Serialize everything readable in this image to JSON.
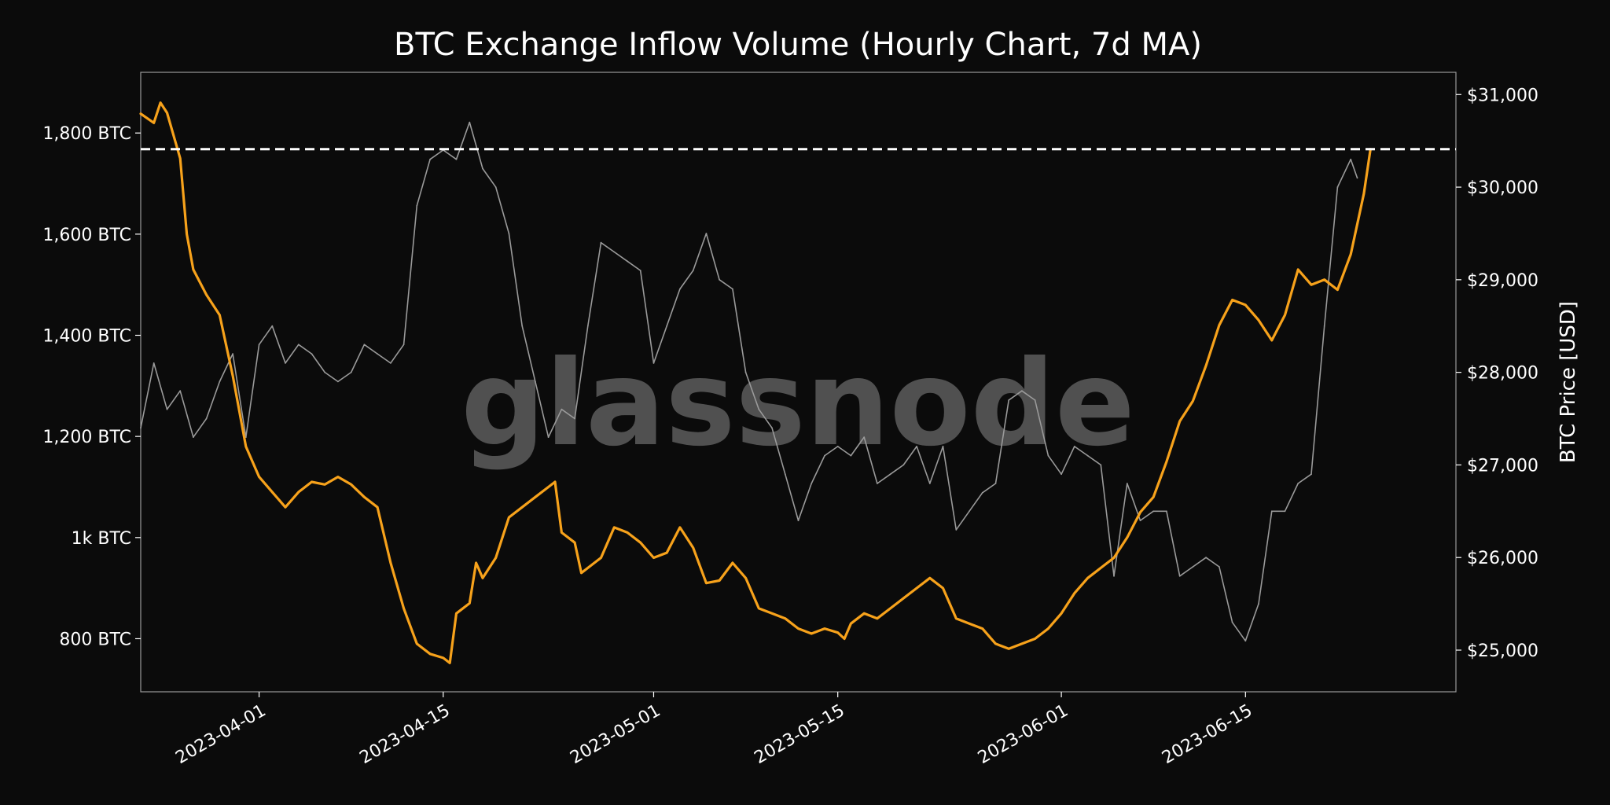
{
  "chart_data": {
    "type": "line",
    "title": "BTC Exchange Inflow Volume (Hourly Chart, 7d MA)",
    "watermark": "glassnode",
    "xlabel": "",
    "ylabel_left": "",
    "ylabel_right": "BTC Price [USD]",
    "x_ticks": [
      "2023-04-01",
      "2023-04-15",
      "2023-05-01",
      "2023-05-15",
      "2023-06-01",
      "2023-06-15"
    ],
    "y_left_ticks": [
      {
        "value": 800,
        "label": "800 BTC"
      },
      {
        "value": 1000,
        "label": "1k BTC"
      },
      {
        "value": 1200,
        "label": "1,200 BTC"
      },
      {
        "value": 1400,
        "label": "1,400 BTC"
      },
      {
        "value": 1600,
        "label": "1,600 BTC"
      },
      {
        "value": 1800,
        "label": "1,800 BTC"
      }
    ],
    "y_right_ticks": [
      {
        "value": 25000,
        "label": "$25,000"
      },
      {
        "value": 26000,
        "label": "$26,000"
      },
      {
        "value": 27000,
        "label": "$27,000"
      },
      {
        "value": 28000,
        "label": "$28,000"
      },
      {
        "value": 29000,
        "label": "$29,000"
      },
      {
        "value": 30000,
        "label": "$30,000"
      },
      {
        "value": 31000,
        "label": "$31,000"
      }
    ],
    "x_range": [
      "2023-03-23",
      "2023-07-01"
    ],
    "y_left_range": [
      695,
      1920
    ],
    "y_right_range": [
      24550,
      31240
    ],
    "reference_line": {
      "axis": "left",
      "value": 1768,
      "style": "dashed",
      "color": "#ffffff"
    },
    "grid": false,
    "colors": {
      "background": "#0b0b0b",
      "inflow": "#f7a21b",
      "price": "#9a9a9a"
    },
    "series": [
      {
        "key": "inflow_7d_ma",
        "axis": "left",
        "color": "#f7a21b",
        "points": [
          [
            "2023-03-23",
            1838
          ],
          [
            "2023-03-24",
            1820
          ],
          [
            "2023-03-24T12",
            1860
          ],
          [
            "2023-03-25",
            1840
          ],
          [
            "2023-03-26",
            1750
          ],
          [
            "2023-03-26T12",
            1600
          ],
          [
            "2023-03-27",
            1530
          ],
          [
            "2023-03-28",
            1480
          ],
          [
            "2023-03-29",
            1440
          ],
          [
            "2023-03-30",
            1320
          ],
          [
            "2023-03-31",
            1180
          ],
          [
            "2023-04-01",
            1120
          ],
          [
            "2023-04-02",
            1090
          ],
          [
            "2023-04-03",
            1060
          ],
          [
            "2023-04-04",
            1090
          ],
          [
            "2023-04-05",
            1110
          ],
          [
            "2023-04-06",
            1105
          ],
          [
            "2023-04-07",
            1120
          ],
          [
            "2023-04-08",
            1105
          ],
          [
            "2023-04-09",
            1080
          ],
          [
            "2023-04-10",
            1060
          ],
          [
            "2023-04-11",
            950
          ],
          [
            "2023-04-12",
            860
          ],
          [
            "2023-04-13",
            790
          ],
          [
            "2023-04-14",
            770
          ],
          [
            "2023-04-15",
            762
          ],
          [
            "2023-04-15T12",
            752
          ],
          [
            "2023-04-16",
            850
          ],
          [
            "2023-04-17",
            870
          ],
          [
            "2023-04-17T12",
            950
          ],
          [
            "2023-04-18",
            920
          ],
          [
            "2023-04-19",
            960
          ],
          [
            "2023-04-20",
            1040
          ],
          [
            "2023-04-21",
            1060
          ],
          [
            "2023-04-22",
            1080
          ],
          [
            "2023-04-23",
            1100
          ],
          [
            "2023-04-23T12",
            1110
          ],
          [
            "2023-04-24",
            1010
          ],
          [
            "2023-04-25",
            990
          ],
          [
            "2023-04-25T12",
            930
          ],
          [
            "2023-04-26",
            940
          ],
          [
            "2023-04-27",
            960
          ],
          [
            "2023-04-28",
            1020
          ],
          [
            "2023-04-29",
            1010
          ],
          [
            "2023-04-30",
            990
          ],
          [
            "2023-05-01",
            960
          ],
          [
            "2023-05-02",
            970
          ],
          [
            "2023-05-03",
            1020
          ],
          [
            "2023-05-04",
            980
          ],
          [
            "2023-05-05",
            910
          ],
          [
            "2023-05-06",
            915
          ],
          [
            "2023-05-07",
            950
          ],
          [
            "2023-05-08",
            920
          ],
          [
            "2023-05-09",
            860
          ],
          [
            "2023-05-10",
            850
          ],
          [
            "2023-05-11",
            840
          ],
          [
            "2023-05-12",
            820
          ],
          [
            "2023-05-13",
            810
          ],
          [
            "2023-05-14",
            820
          ],
          [
            "2023-05-15",
            812
          ],
          [
            "2023-05-15T12",
            800
          ],
          [
            "2023-05-16",
            830
          ],
          [
            "2023-05-17",
            850
          ],
          [
            "2023-05-18",
            840
          ],
          [
            "2023-05-19",
            860
          ],
          [
            "2023-05-20",
            880
          ],
          [
            "2023-05-21",
            900
          ],
          [
            "2023-05-22",
            920
          ],
          [
            "2023-05-23",
            900
          ],
          [
            "2023-05-24",
            840
          ],
          [
            "2023-05-25",
            830
          ],
          [
            "2023-05-26",
            820
          ],
          [
            "2023-05-27",
            790
          ],
          [
            "2023-05-28",
            780
          ],
          [
            "2023-05-29",
            790
          ],
          [
            "2023-05-30",
            800
          ],
          [
            "2023-05-31",
            820
          ],
          [
            "2023-06-01",
            850
          ],
          [
            "2023-06-02",
            890
          ],
          [
            "2023-06-03",
            920
          ],
          [
            "2023-06-04",
            940
          ],
          [
            "2023-06-05",
            960
          ],
          [
            "2023-06-06",
            1000
          ],
          [
            "2023-06-07",
            1050
          ],
          [
            "2023-06-08",
            1080
          ],
          [
            "2023-06-09",
            1150
          ],
          [
            "2023-06-10",
            1230
          ],
          [
            "2023-06-11",
            1270
          ],
          [
            "2023-06-12",
            1340
          ],
          [
            "2023-06-13",
            1420
          ],
          [
            "2023-06-14",
            1470
          ],
          [
            "2023-06-15",
            1460
          ],
          [
            "2023-06-16",
            1430
          ],
          [
            "2023-06-17",
            1390
          ],
          [
            "2023-06-18",
            1440
          ],
          [
            "2023-06-19",
            1530
          ],
          [
            "2023-06-20",
            1500
          ],
          [
            "2023-06-21",
            1510
          ],
          [
            "2023-06-22",
            1490
          ],
          [
            "2023-06-23",
            1560
          ],
          [
            "2023-06-24",
            1680
          ],
          [
            "2023-06-24T12",
            1768
          ]
        ]
      },
      {
        "key": "btc_price",
        "axis": "right",
        "color": "#9a9a9a",
        "points": [
          [
            "2023-03-23",
            27400
          ],
          [
            "2023-03-24",
            28100
          ],
          [
            "2023-03-25",
            27600
          ],
          [
            "2023-03-26",
            27800
          ],
          [
            "2023-03-27",
            27300
          ],
          [
            "2023-03-28",
            27500
          ],
          [
            "2023-03-29",
            27900
          ],
          [
            "2023-03-30",
            28200
          ],
          [
            "2023-03-31",
            27300
          ],
          [
            "2023-04-01",
            28300
          ],
          [
            "2023-04-02",
            28500
          ],
          [
            "2023-04-03",
            28100
          ],
          [
            "2023-04-04",
            28300
          ],
          [
            "2023-04-05",
            28200
          ],
          [
            "2023-04-06",
            28000
          ],
          [
            "2023-04-07",
            27900
          ],
          [
            "2023-04-08",
            28000
          ],
          [
            "2023-04-09",
            28300
          ],
          [
            "2023-04-10",
            28200
          ],
          [
            "2023-04-11",
            28100
          ],
          [
            "2023-04-12",
            28300
          ],
          [
            "2023-04-13",
            29800
          ],
          [
            "2023-04-14",
            30300
          ],
          [
            "2023-04-15",
            30400
          ],
          [
            "2023-04-16",
            30300
          ],
          [
            "2023-04-17",
            30700
          ],
          [
            "2023-04-18",
            30200
          ],
          [
            "2023-04-19",
            30000
          ],
          [
            "2023-04-20",
            29500
          ],
          [
            "2023-04-21",
            28500
          ],
          [
            "2023-04-22",
            27900
          ],
          [
            "2023-04-23",
            27300
          ],
          [
            "2023-04-24",
            27600
          ],
          [
            "2023-04-25",
            27500
          ],
          [
            "2023-04-26",
            28500
          ],
          [
            "2023-04-27",
            29400
          ],
          [
            "2023-04-28",
            29300
          ],
          [
            "2023-04-29",
            29200
          ],
          [
            "2023-04-30",
            29100
          ],
          [
            "2023-05-01",
            28100
          ],
          [
            "2023-05-02",
            28500
          ],
          [
            "2023-05-03",
            28900
          ],
          [
            "2023-05-04",
            29100
          ],
          [
            "2023-05-05",
            29500
          ],
          [
            "2023-05-06",
            29000
          ],
          [
            "2023-05-07",
            28900
          ],
          [
            "2023-05-08",
            28000
          ],
          [
            "2023-05-09",
            27600
          ],
          [
            "2023-05-10",
            27400
          ],
          [
            "2023-05-11",
            26900
          ],
          [
            "2023-05-12",
            26400
          ],
          [
            "2023-05-13",
            26800
          ],
          [
            "2023-05-14",
            27100
          ],
          [
            "2023-05-15",
            27200
          ],
          [
            "2023-05-16",
            27100
          ],
          [
            "2023-05-17",
            27300
          ],
          [
            "2023-05-18",
            26800
          ],
          [
            "2023-05-19",
            26900
          ],
          [
            "2023-05-20",
            27000
          ],
          [
            "2023-05-21",
            27200
          ],
          [
            "2023-05-22",
            26800
          ],
          [
            "2023-05-23",
            27200
          ],
          [
            "2023-05-24",
            26300
          ],
          [
            "2023-05-25",
            26500
          ],
          [
            "2023-05-26",
            26700
          ],
          [
            "2023-05-27",
            26800
          ],
          [
            "2023-05-28",
            27700
          ],
          [
            "2023-05-29",
            27800
          ],
          [
            "2023-05-30",
            27700
          ],
          [
            "2023-05-31",
            27100
          ],
          [
            "2023-06-01",
            26900
          ],
          [
            "2023-06-02",
            27200
          ],
          [
            "2023-06-03",
            27100
          ],
          [
            "2023-06-04",
            27000
          ],
          [
            "2023-06-05",
            25800
          ],
          [
            "2023-06-06",
            26800
          ],
          [
            "2023-06-07",
            26400
          ],
          [
            "2023-06-08",
            26500
          ],
          [
            "2023-06-09",
            26500
          ],
          [
            "2023-06-10",
            25800
          ],
          [
            "2023-06-11",
            25900
          ],
          [
            "2023-06-12",
            26000
          ],
          [
            "2023-06-13",
            25900
          ],
          [
            "2023-06-14",
            25300
          ],
          [
            "2023-06-15",
            25100
          ],
          [
            "2023-06-16",
            25500
          ],
          [
            "2023-06-17",
            26500
          ],
          [
            "2023-06-18",
            26500
          ],
          [
            "2023-06-19",
            26800
          ],
          [
            "2023-06-20",
            26900
          ],
          [
            "2023-06-21",
            28500
          ],
          [
            "2023-06-22",
            30000
          ],
          [
            "2023-06-23",
            30300
          ],
          [
            "2023-06-23T12",
            30100
          ]
        ]
      }
    ]
  }
}
